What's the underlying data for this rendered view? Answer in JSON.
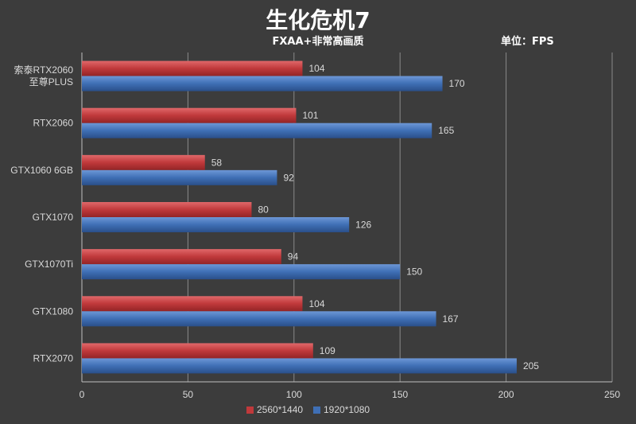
{
  "chart_data": {
    "type": "bar",
    "orientation": "horizontal",
    "title": "生化危机7",
    "subtitle": "FXAA+非常高画质",
    "unit_label": "单位：FPS",
    "categories": [
      "索泰RTX2060\n至尊PLUS",
      "RTX2060",
      "GTX1060 6GB",
      "GTX1070",
      "GTX1070Ti",
      "GTX1080",
      "RTX2070"
    ],
    "series": [
      {
        "name": "2560*1440",
        "color": "#c0393b",
        "values": [
          104,
          101,
          58,
          80,
          94,
          104,
          109
        ]
      },
      {
        "name": "1920*1080",
        "color": "#3f6fb5",
        "values": [
          170,
          165,
          92,
          126,
          150,
          167,
          205
        ]
      }
    ],
    "xlim": [
      0,
      250
    ],
    "xticks": [
      0,
      50,
      100,
      150,
      200,
      250
    ],
    "grid": true,
    "legend_position": "bottom-left"
  }
}
